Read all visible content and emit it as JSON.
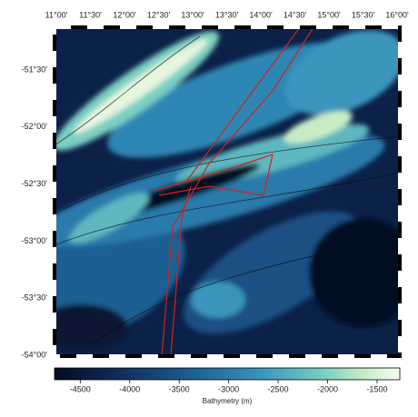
{
  "map": {
    "lon_ticks": [
      "11°00'",
      "11°30'",
      "12°00'",
      "12°30'",
      "13°00'",
      "13°30'",
      "14°00'",
      "14°30'",
      "15°00'",
      "15°30'",
      "16°00'"
    ],
    "lat_ticks": [
      "-51°30'",
      "-52°00'",
      "-52°30'",
      "-53°00'",
      "-53°30'",
      "-54°00'"
    ],
    "colorbar": {
      "label": "Bathymetry (m)",
      "lim": [
        -4760,
        -1270
      ],
      "ticks": [
        -4500,
        -4000,
        -3500,
        -3000,
        -2500,
        -2000,
        -1500
      ]
    }
  }
}
